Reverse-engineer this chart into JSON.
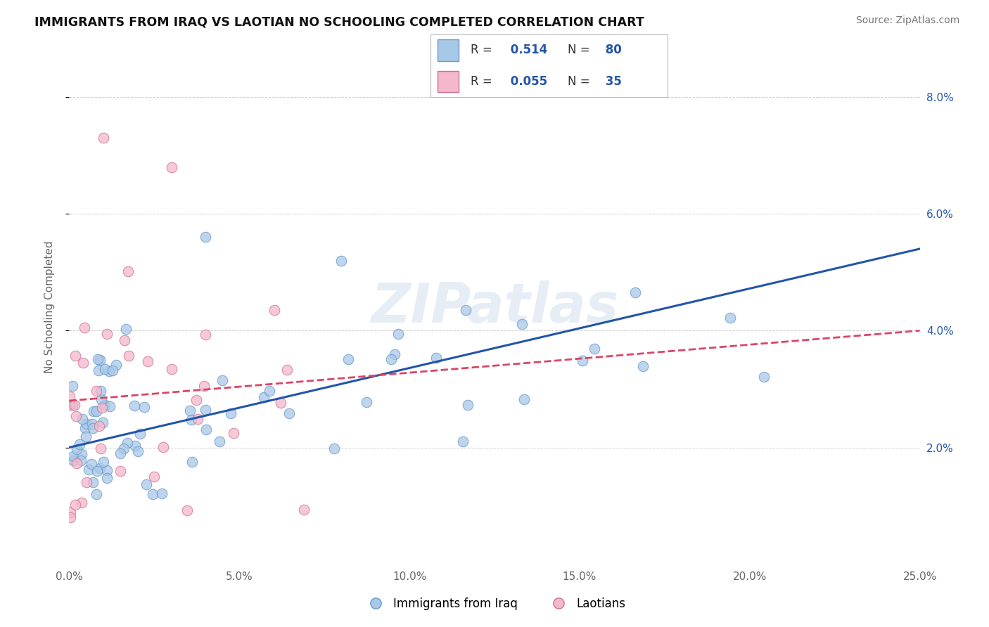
{
  "title": "IMMIGRANTS FROM IRAQ VS LAOTIAN NO SCHOOLING COMPLETED CORRELATION CHART",
  "source": "Source: ZipAtlas.com",
  "ylabel": "No Schooling Completed",
  "xlabel": "",
  "x_min": 0.0,
  "x_max": 0.25,
  "y_min": 0.0,
  "y_max": 0.088,
  "x_ticks": [
    0.0,
    0.05,
    0.1,
    0.15,
    0.2,
    0.25
  ],
  "x_tick_labels": [
    "0.0%",
    "5.0%",
    "10.0%",
    "15.0%",
    "20.0%",
    "25.0%"
  ],
  "y_ticks_right": [
    0.02,
    0.04,
    0.06,
    0.08
  ],
  "y_tick_labels_right": [
    "2.0%",
    "4.0%",
    "6.0%",
    "8.0%"
  ],
  "series1_color": "#a8c8e8",
  "series1_edge": "#6699cc",
  "series2_color": "#f4b8cc",
  "series2_edge": "#d07090",
  "series1_label": "Immigrants from Iraq",
  "series2_label": "Laotians",
  "R1": 0.514,
  "N1": 80,
  "R2": 0.055,
  "N2": 35,
  "line1_color": "#2255aa",
  "line2_color": "#dd4466",
  "watermark": "ZIPatlas",
  "grid_color": "#cccccc",
  "background_color": "#ffffff",
  "line1_x0": 0.0,
  "line1_y0": 0.02,
  "line1_x1": 0.25,
  "line1_y1": 0.054,
  "line2_x0": 0.0,
  "line2_y0": 0.028,
  "line2_x1": 0.25,
  "line2_y1": 0.04
}
